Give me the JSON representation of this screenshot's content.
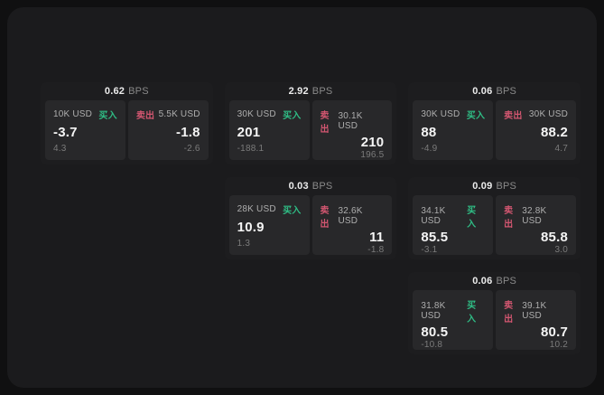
{
  "units": {
    "bps": "BPS"
  },
  "labels": {
    "buy": "买入",
    "sell": "卖出"
  },
  "colors": {
    "buy": "#2fbd85",
    "sell": "#d25670",
    "panel_bg": "#1b1b1d",
    "card_bg": "#1d1d1f",
    "tile_bg": "#28282a"
  },
  "cards": [
    {
      "bps": "0.62",
      "buy": {
        "size": "10K USD",
        "value": "-3.7",
        "sub": "4.3"
      },
      "sell": {
        "size": "5.5K USD",
        "value": "-1.8",
        "sub": "-2.6"
      }
    },
    {
      "bps": "2.92",
      "buy": {
        "size": "30K USD",
        "value": "201",
        "sub": "-188.1"
      },
      "sell": {
        "size": "30.1K USD",
        "value": "210",
        "sub": "196.5"
      }
    },
    {
      "bps": "0.06",
      "buy": {
        "size": "30K USD",
        "value": "88",
        "sub": "-4.9"
      },
      "sell": {
        "size": "30K USD",
        "value": "88.2",
        "sub": "4.7"
      }
    },
    {
      "bps": "0.03",
      "buy": {
        "size": "28K USD",
        "value": "10.9",
        "sub": "1.3"
      },
      "sell": {
        "size": "32.6K USD",
        "value": "11",
        "sub": "-1.8"
      }
    },
    {
      "bps": "0.09",
      "buy": {
        "size": "34.1K USD",
        "value": "85.5",
        "sub": "-3.1"
      },
      "sell": {
        "size": "32.8K USD",
        "value": "85.8",
        "sub": "3.0"
      }
    },
    {
      "bps": "0.06",
      "buy": {
        "size": "31.8K USD",
        "value": "80.5",
        "sub": "-10.8"
      },
      "sell": {
        "size": "39.1K USD",
        "value": "80.7",
        "sub": "10.2"
      }
    }
  ]
}
